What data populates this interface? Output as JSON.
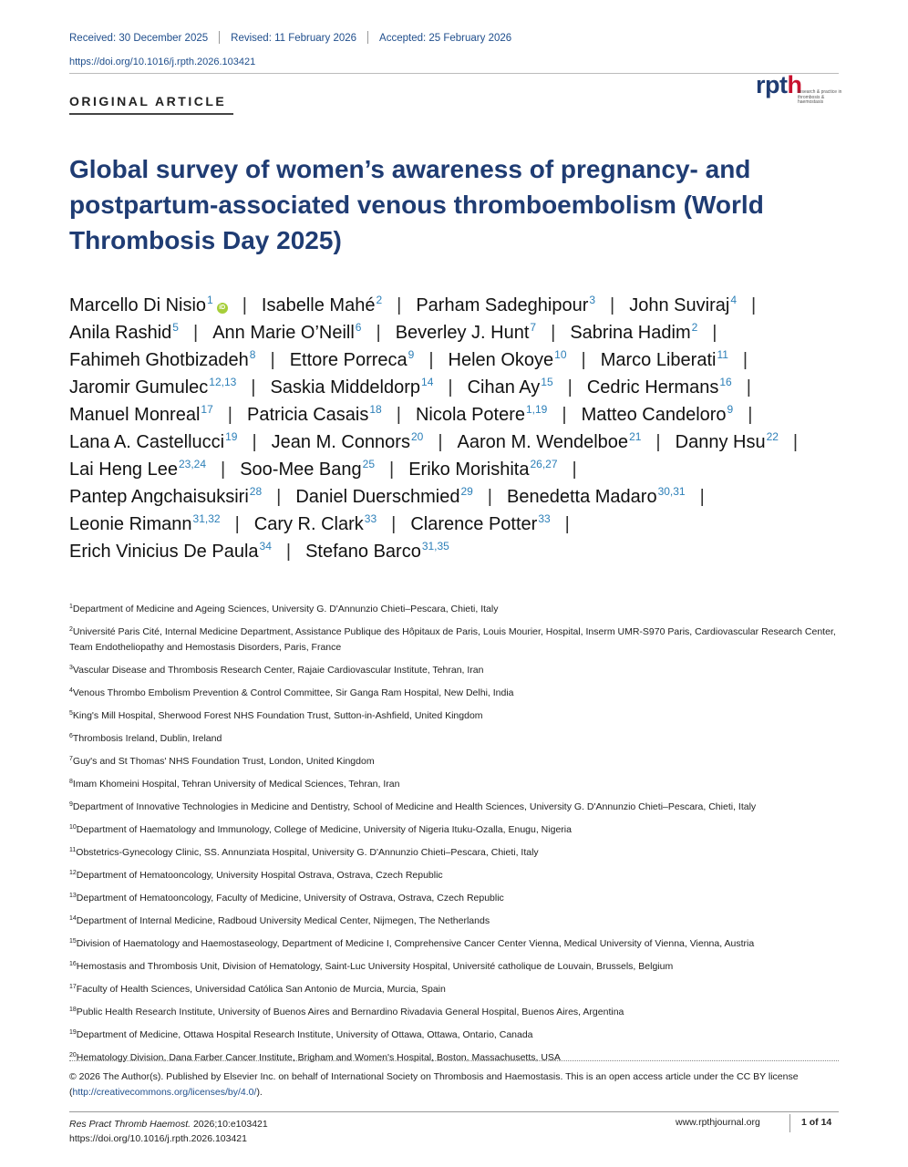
{
  "header": {
    "received": "Received: 30 December 2025",
    "revised": "Revised: 11 February 2026",
    "accepted": "Accepted: 25 February 2026",
    "doi": "https://doi.org/10.1016/j.rpth.2026.103421"
  },
  "article_type": "ORIGINAL ARTICLE",
  "logo": {
    "main": "rpt",
    "accent": "h",
    "sub": "research & practice in thrombosis & haemostasis"
  },
  "title": "Global survey of women’s awareness of pregnancy- and postpartum-associated venous thromboembolism (World Thrombosis Day 2025)",
  "author_lines": [
    [
      {
        "name": "Marcello Di Nisio",
        "sup": "1",
        "orcid": true
      },
      {
        "name": "Isabelle Mahé",
        "sup": "2"
      },
      {
        "name": "Parham Sadeghipour",
        "sup": "3"
      },
      {
        "name": "John Suviraj",
        "sup": "4"
      }
    ],
    [
      {
        "name": "Anila Rashid",
        "sup": "5"
      },
      {
        "name": "Ann Marie O’Neill",
        "sup": "6"
      },
      {
        "name": "Beverley J. Hunt",
        "sup": "7"
      },
      {
        "name": "Sabrina Hadim",
        "sup": "2"
      }
    ],
    [
      {
        "name": "Fahimeh Ghotbizadeh",
        "sup": "8"
      },
      {
        "name": "Ettore Porreca",
        "sup": "9"
      },
      {
        "name": "Helen Okoye",
        "sup": "10"
      },
      {
        "name": "Marco Liberati",
        "sup": "11"
      }
    ],
    [
      {
        "name": "Jaromir Gumulec",
        "sup": "12,13"
      },
      {
        "name": "Saskia Middeldorp",
        "sup": "14"
      },
      {
        "name": "Cihan Ay",
        "sup": "15"
      },
      {
        "name": "Cedric Hermans",
        "sup": "16"
      }
    ],
    [
      {
        "name": "Manuel Monreal",
        "sup": "17"
      },
      {
        "name": "Patricia Casais",
        "sup": "18"
      },
      {
        "name": "Nicola Potere",
        "sup": "1,19"
      },
      {
        "name": "Matteo Candeloro",
        "sup": "9"
      }
    ],
    [
      {
        "name": "Lana A. Castellucci",
        "sup": "19"
      },
      {
        "name": "Jean M. Connors",
        "sup": "20"
      },
      {
        "name": "Aaron M. Wendelboe",
        "sup": "21"
      },
      {
        "name": "Danny Hsu",
        "sup": "22"
      }
    ],
    [
      {
        "name": "Lai Heng Lee",
        "sup": "23,24"
      },
      {
        "name": "Soo-Mee Bang",
        "sup": "25"
      },
      {
        "name": "Eriko Morishita",
        "sup": "26,27"
      }
    ],
    [
      {
        "name": "Pantep Angchaisuksiri",
        "sup": "28"
      },
      {
        "name": "Daniel Duerschmied",
        "sup": "29"
      },
      {
        "name": "Benedetta Madaro",
        "sup": "30,31"
      }
    ],
    [
      {
        "name": "Leonie Rimann",
        "sup": "31,32"
      },
      {
        "name": "Cary R. Clark",
        "sup": "33"
      },
      {
        "name": "Clarence Potter",
        "sup": "33"
      }
    ],
    [
      {
        "name": "Erich Vinicius De Paula",
        "sup": "34"
      },
      {
        "name": "Stefano Barco",
        "sup": "31,35"
      }
    ]
  ],
  "trailing_bar_lines": [
    0,
    1,
    2,
    3,
    4,
    5,
    6,
    7,
    8
  ],
  "affiliations": [
    {
      "n": "1",
      "text": "Department of Medicine and Ageing Sciences, University G. D'Annunzio Chieti–Pescara, Chieti, Italy"
    },
    {
      "n": "2",
      "text": "Université Paris Cité, Internal Medicine Department, Assistance Publique des Hôpitaux de Paris, Louis Mourier, Hospital, Inserm UMR-S970 Paris, Cardiovascular Research Center, Team Endotheliopathy and Hemostasis Disorders, Paris, France"
    },
    {
      "n": "3",
      "text": "Vascular Disease and Thrombosis Research Center, Rajaie Cardiovascular Institute, Tehran, Iran"
    },
    {
      "n": "4",
      "text": "Venous Thrombo Embolism Prevention & Control Committee, Sir Ganga Ram Hospital, New Delhi, India"
    },
    {
      "n": "5",
      "text": "King's Mill Hospital, Sherwood Forest NHS Foundation Trust, Sutton-in-Ashfield, United Kingdom"
    },
    {
      "n": "6",
      "text": "Thrombosis Ireland, Dublin, Ireland"
    },
    {
      "n": "7",
      "text": "Guy's and St Thomas' NHS Foundation Trust, London, United Kingdom"
    },
    {
      "n": "8",
      "text": "Imam Khomeini Hospital, Tehran University of Medical Sciences, Tehran, Iran"
    },
    {
      "n": "9",
      "text": "Department of Innovative Technologies in Medicine and Dentistry, School of Medicine and Health Sciences, University G. D'Annunzio Chieti–Pescara, Chieti, Italy"
    },
    {
      "n": "10",
      "text": "Department of Haematology and Immunology, College of Medicine, University of Nigeria Ituku-Ozalla, Enugu, Nigeria"
    },
    {
      "n": "11",
      "text": "Obstetrics-Gynecology Clinic, SS. Annunziata Hospital, University G. D'Annunzio Chieti–Pescara, Chieti, Italy"
    },
    {
      "n": "12",
      "text": "Department of Hematooncology, University Hospital Ostrava, Ostrava, Czech Republic"
    },
    {
      "n": "13",
      "text": "Department of Hematooncology, Faculty of Medicine, University of Ostrava, Ostrava, Czech Republic"
    },
    {
      "n": "14",
      "text": "Department of Internal Medicine, Radboud University Medical Center, Nijmegen, The Netherlands"
    },
    {
      "n": "15",
      "text": "Division of Haematology and Haemostaseology, Department of Medicine I, Comprehensive Cancer Center Vienna, Medical University of Vienna, Vienna, Austria"
    },
    {
      "n": "16",
      "text": "Hemostasis and Thrombosis Unit, Division of Hematology, Saint-Luc University Hospital, Université catholique de Louvain, Brussels, Belgium"
    },
    {
      "n": "17",
      "text": "Faculty of Health Sciences, Universidad Católica San Antonio de Murcia, Murcia, Spain"
    },
    {
      "n": "18",
      "text": "Public Health Research Institute, University of Buenos Aires and Bernardino Rivadavia General Hospital, Buenos Aires, Argentina"
    },
    {
      "n": "19",
      "text": "Department of Medicine, Ottawa Hospital Research Institute, University of Ottawa, Ottawa, Ontario, Canada"
    },
    {
      "n": "20",
      "text": "Hematology Division, Dana Farber Cancer Institute, Brigham and Women's Hospital, Boston, Massachusetts, USA"
    }
  ],
  "license": {
    "text": "© 2026 The Author(s). Published by Elsevier Inc. on behalf of International Society on Thrombosis and Haemostasis. This is an open access article under the CC BY license (",
    "link": "http://creativecommons.org/licenses/by/4.0/",
    "tail": ")."
  },
  "footer": {
    "journal": "Res Pract Thromb Haemost.",
    "citation": " 2026;10:e103421",
    "doi": "https://doi.org/10.1016/j.rpth.2026.103421",
    "site": "www.rpthjournal.org",
    "page": "1 of 14"
  },
  "colors": {
    "title": "#1f3c73",
    "link": "#1f4e8c",
    "superscript": "#2c7fb8",
    "orcid": "#a6ce39",
    "logo_accent": "#c8102e"
  }
}
